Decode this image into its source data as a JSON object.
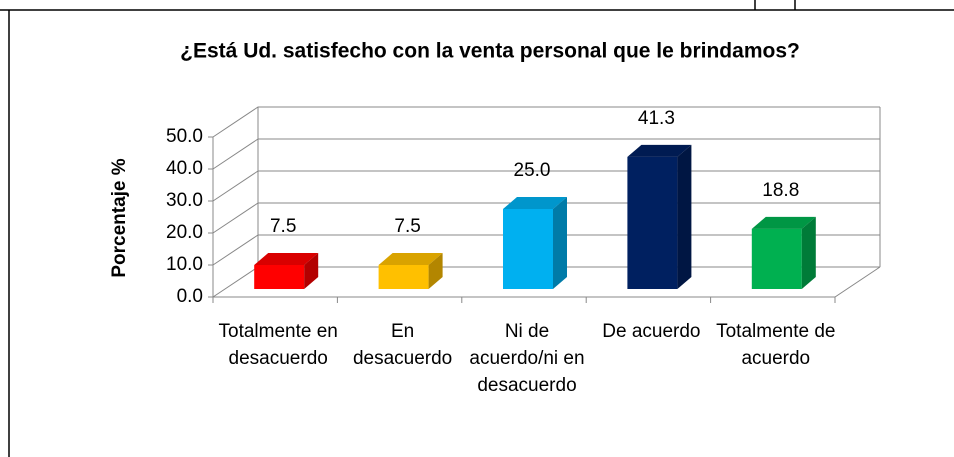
{
  "chart_data": {
    "type": "bar3d",
    "title": "¿Está Ud. satisfecho con la venta personal que le brindamos?",
    "y_label": "Porcentaje %",
    "categories": [
      "Totalmente en desacuerdo",
      "En desacuerdo",
      "Ni de acuerdo/ni en desacuerdo",
      "De acuerdo",
      "Totalmente de acuerdo"
    ],
    "values": [
      7.5,
      7.5,
      25.0,
      41.3,
      18.8
    ],
    "value_labels": [
      "7.5",
      "7.5",
      "25.0",
      "41.3",
      "18.8"
    ],
    "colors": [
      "#ff0000",
      "#ffc000",
      "#00b0f0",
      "#002060",
      "#00b050"
    ],
    "ylim": [
      0,
      50
    ],
    "yticks": [
      {
        "value": 0,
        "label": "0.0"
      },
      {
        "value": 10,
        "label": "10.0"
      },
      {
        "value": 20,
        "label": "20.0"
      },
      {
        "value": 30,
        "label": "30.0"
      },
      {
        "value": 40,
        "label": "40.0"
      },
      {
        "value": 50,
        "label": "50.0"
      }
    ],
    "grid": true
  }
}
